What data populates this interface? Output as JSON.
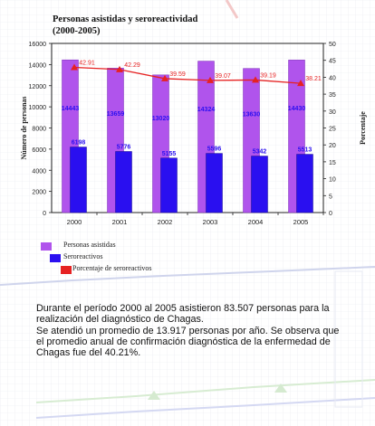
{
  "colors": {
    "bar_assisted": "#b054ec",
    "bar_seroreactive": "#2a0ff0",
    "line": "#e62222",
    "marker": "#e62222",
    "label_assisted": "#2a0ff0",
    "label_seroreactive": "#2a0ff0",
    "label_percentage": "#e62222"
  },
  "chart_data": {
    "type": "bar",
    "title": "Personas asistidas y seroreactividad",
    "subtitle": "(2000-2005)",
    "categories": [
      "2000",
      "2001",
      "2002",
      "2003",
      "2004",
      "2005"
    ],
    "ylabel_left": "Número de personas",
    "ylabel_right": "Porcentaje",
    "ylim_left": [
      0,
      16000
    ],
    "ylim_right": [
      0,
      50
    ],
    "yticks_left": [
      "0",
      "2000",
      "4000",
      "6000",
      "8000",
      "10000",
      "12000",
      "14000",
      "16000"
    ],
    "yticks_right": [
      "0",
      "5",
      "10",
      "15",
      "20",
      "25",
      "30",
      "35",
      "40",
      "45",
      "50"
    ],
    "grid": false,
    "series": [
      {
        "name": "Personas asistidas",
        "type": "bar",
        "axis": "left",
        "values": [
          14443,
          13659,
          13020,
          14324,
          13630,
          14430
        ],
        "labels": [
          "14443",
          "13659",
          "13020",
          "14324",
          "13630",
          "14430"
        ]
      },
      {
        "name": "Seroreactivos",
        "type": "bar",
        "axis": "left",
        "values": [
          6198,
          5776,
          5155,
          5596,
          5342,
          5513
        ],
        "labels": [
          "6198",
          "5776",
          "5155",
          "5596",
          "5342",
          "5513"
        ]
      },
      {
        "name": "Porcentaje de seroreactivos",
        "type": "line",
        "axis": "right",
        "values": [
          42.91,
          42.29,
          39.59,
          39.07,
          39.19,
          38.21
        ],
        "labels": [
          "42.91",
          "42.29",
          "39.59",
          "39.07",
          "39.19",
          "38.21"
        ]
      }
    ],
    "legend_position": "bottom-left"
  },
  "text": {
    "line1": "Durante el período 2000 al 2005 asistieron 83.507 personas para la",
    "line2": "realización del diagnóstico de Chagas.",
    "line3": "Se atendió un promedio de 13.917 personas por año. Se observa que",
    "line4": "el promedio anual de confirmación diagnóstica de la enfermedad de",
    "line5": "Chagas fue del 40.21%."
  }
}
